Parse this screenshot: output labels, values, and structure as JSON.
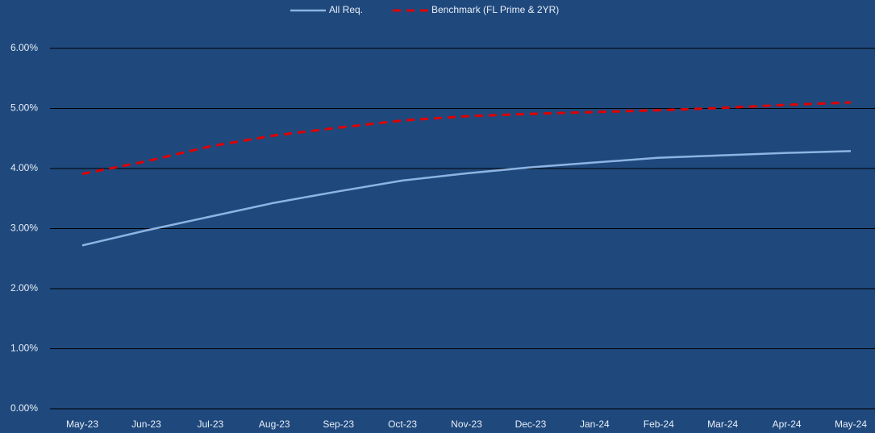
{
  "chart_data": {
    "type": "line",
    "categories": [
      "May-23",
      "Jun-23",
      "Jul-23",
      "Aug-23",
      "Sep-23",
      "Oct-23",
      "Nov-23",
      "Dec-23",
      "Jan-24",
      "Feb-24",
      "Mar-24",
      "Apr-24",
      "May-24"
    ],
    "series": [
      {
        "name": "All Req.",
        "color": "#8db4e2",
        "dash": false,
        "values": [
          2.72,
          2.97,
          3.2,
          3.43,
          3.62,
          3.8,
          3.92,
          4.02,
          4.1,
          4.18,
          4.22,
          4.26,
          4.29
        ]
      },
      {
        "name": "Benchmark (FL Prime & 2YR)",
        "color": "#e00000",
        "dash": true,
        "values": [
          3.91,
          4.12,
          4.37,
          4.55,
          4.68,
          4.8,
          4.87,
          4.91,
          4.94,
          4.97,
          5.01,
          5.06,
          5.1
        ]
      }
    ],
    "ylim": [
      0,
      6
    ],
    "yticks": [
      {
        "value": 0,
        "label": "0.00%"
      },
      {
        "value": 1,
        "label": "1.00%"
      },
      {
        "value": 2,
        "label": "2.00%"
      },
      {
        "value": 3,
        "label": "3.00%"
      },
      {
        "value": 4,
        "label": "4.00%"
      },
      {
        "value": 5,
        "label": "5.00%"
      },
      {
        "value": 6,
        "label": "6.00%"
      }
    ],
    "grid": true,
    "legend": "top"
  }
}
